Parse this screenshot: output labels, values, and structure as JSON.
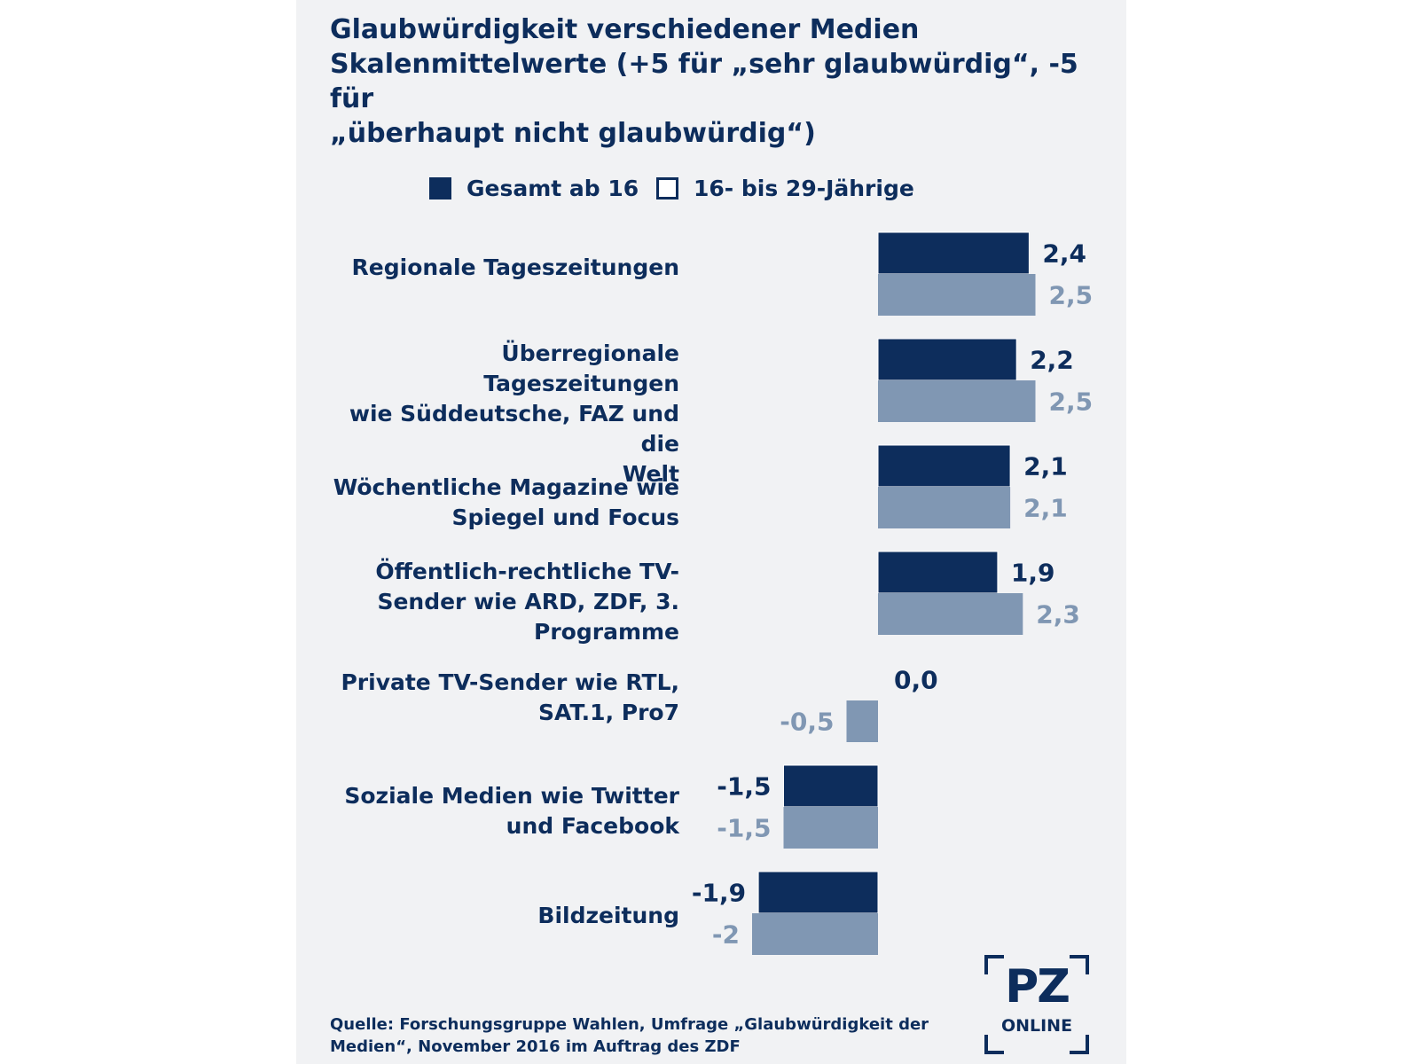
{
  "chart_data": {
    "type": "bar",
    "orientation": "horizontal",
    "title": "Glaubwürdigkeit verschiedener Medien Skalenmittelwerte (+5 für „sehr glaubwürdig“, -5 für „überhaupt nicht glaubwürdig“)",
    "categories": [
      "Regionale Tageszeitungen",
      "Überregionale Tageszeitungen wie Süddeutsche, FAZ und die Welt",
      "Wöchentliche Magazine wie Spiegel und Focus",
      "Öffentlich-rechtliche TV-Sender wie ARD, ZDF, 3. Programme",
      "Private TV-Sender wie RTL, SAT.1, Pro7",
      "Soziale Medien wie Twitter und Facebook",
      "Bildzeitung"
    ],
    "series": [
      {
        "name": "Gesamt ab 16",
        "color": "#0d2d5c",
        "values": [
          2.4,
          2.2,
          2.1,
          1.9,
          0.0,
          -1.5,
          -1.9
        ],
        "labels": [
          "2,4",
          "2,2",
          "2,1",
          "1,9",
          "0,0",
          "-1,5",
          "-1,9"
        ]
      },
      {
        "name": "16- bis 29-Jährige",
        "color": "#8097b3",
        "values": [
          2.5,
          2.5,
          2.1,
          2.3,
          -0.5,
          -1.5,
          -2.0
        ],
        "labels": [
          "2,5",
          "2,5",
          "2,1",
          "2,3",
          "-0,5",
          "-1,5",
          "-2"
        ]
      }
    ],
    "legend": "top",
    "grid": false,
    "xlim": [
      -5,
      5
    ]
  },
  "title_lines": [
    "Glaubwürdigkeit verschiedener Medien",
    "Skalenmittelwerte (+5 für „sehr glaubwürdig“, -5 für",
    "„überhaupt nicht glaubwürdig“)"
  ],
  "category_label_lines": [
    [
      "Regionale Tageszeitungen"
    ],
    [
      "Überregionale Tageszeitungen",
      "wie Süddeutsche, FAZ und die",
      "Welt"
    ],
    [
      "Wöchentliche Magazine wie",
      "Spiegel und Focus"
    ],
    [
      "Öffentlich-rechtliche TV-",
      "Sender wie ARD, ZDF, 3.",
      "Programme"
    ],
    [
      "Private TV-Sender wie RTL,",
      "SAT.1, Pro7"
    ],
    [
      "Soziale Medien wie Twitter",
      "und Facebook"
    ],
    [
      "Bildzeitung"
    ]
  ],
  "legend": {
    "items": [
      {
        "label": "Gesamt ab 16",
        "style": "filled",
        "color": "#0d2d5c"
      },
      {
        "label": "16- bis 29-Jährige",
        "style": "outline",
        "color": "#0d2d5c"
      }
    ]
  },
  "footer": {
    "line1": "Quelle: Forschungsgruppe Wahlen, Umfrage „Glaubwürdigkeit der",
    "line2": "Medien“, November 2016 im Auftrag des ZDF"
  },
  "logo": {
    "main": "PZ",
    "sub": "ONLINE"
  },
  "colors": {
    "navy": "#0d2d5c",
    "grey_blue": "#8097b3",
    "panel_background": "#f1f2f4"
  }
}
